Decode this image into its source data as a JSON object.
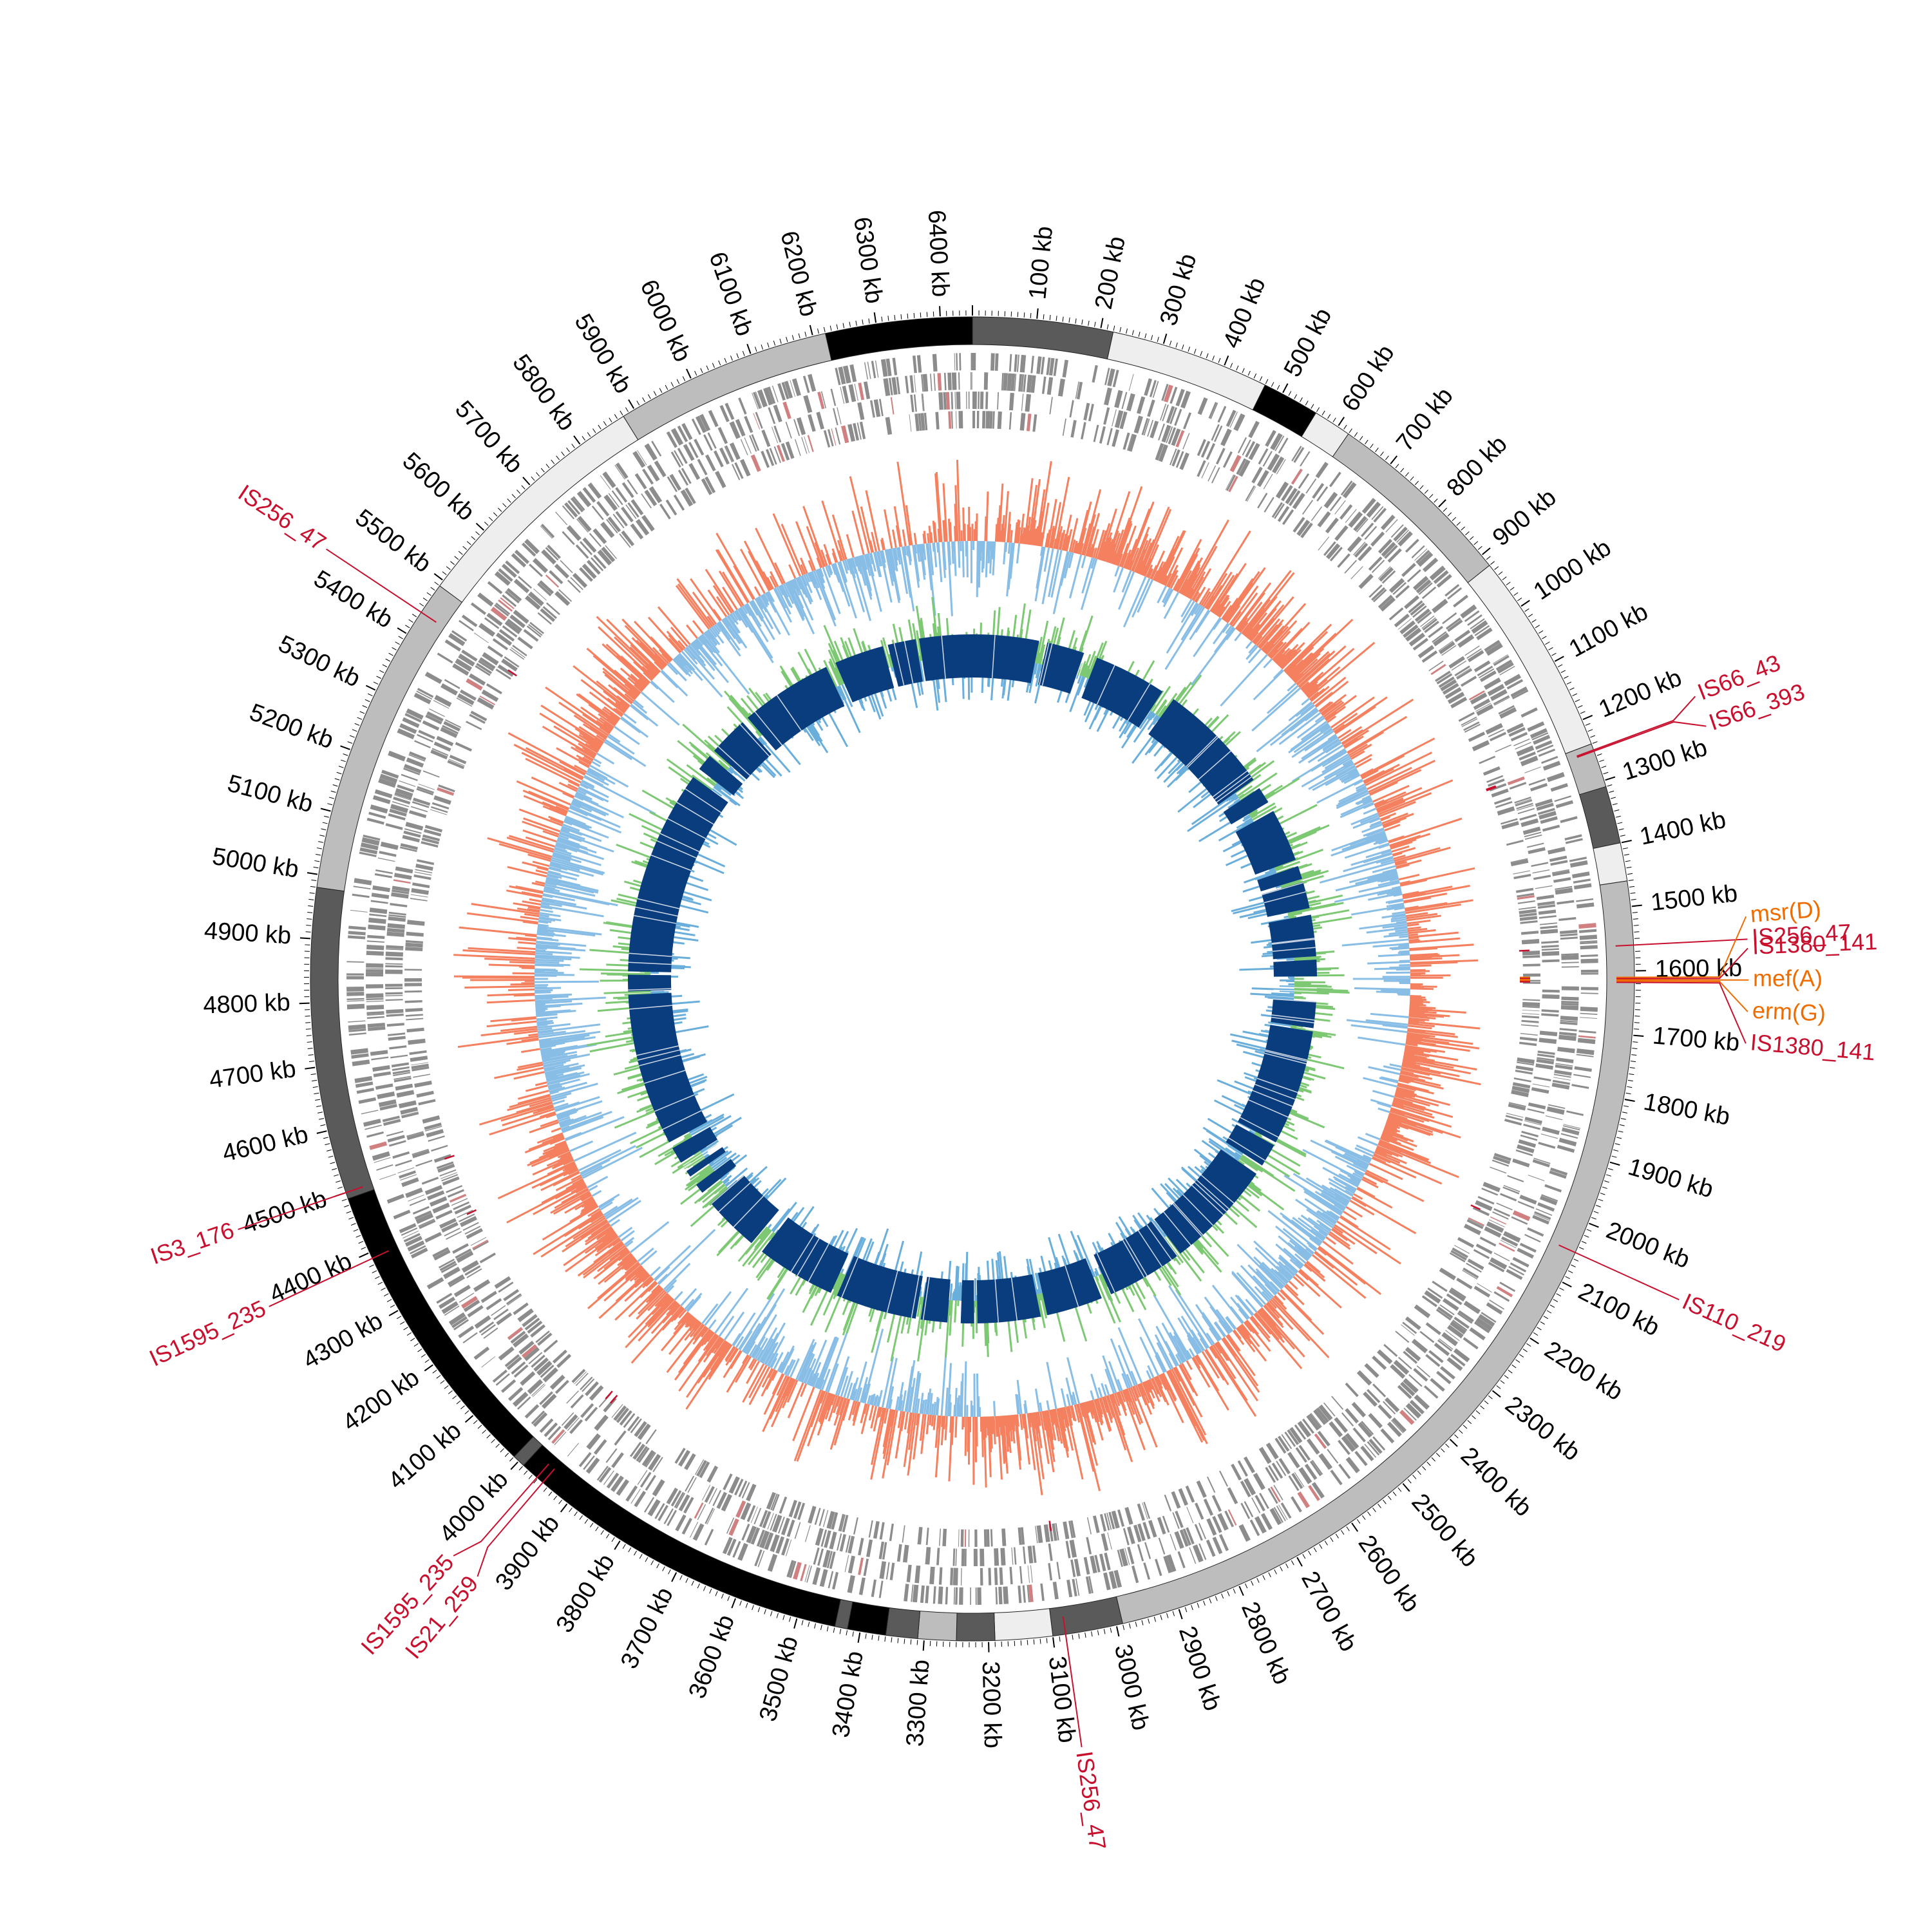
{
  "genome": {
    "total_kb": 6450,
    "tick_labels": [
      "100 kb",
      "200 kb",
      "300 kb",
      "400 kb",
      "500 kb",
      "600 kb",
      "700 kb",
      "800 kb",
      "900 kb",
      "1000 kb",
      "1100 kb",
      "1200 kb",
      "1300 kb",
      "1400 kb",
      "1500 kb",
      "1600 kb",
      "1700 kb",
      "1800 kb",
      "1900 kb",
      "2000 kb",
      "2100 kb",
      "2200 kb",
      "2300 kb",
      "2400 kb",
      "2500 kb",
      "2600 kb",
      "2700 kb",
      "2800 kb",
      "2900 kb",
      "3000 kb",
      "3100 kb",
      "3200 kb",
      "3300 kb",
      "3400 kb",
      "3500 kb",
      "3600 kb",
      "3700 kb",
      "3800 kb",
      "3900 kb",
      "4000 kb",
      "4100 kb",
      "4200 kb",
      "4300 kb",
      "4400 kb",
      "4500 kb",
      "4600 kb",
      "4700 kb",
      "4800 kb",
      "4900 kb",
      "5000 kb",
      "5100 kb",
      "5200 kb",
      "5300 kb",
      "5400 kb",
      "5500 kb",
      "5600 kb",
      "5700 kb",
      "5800 kb",
      "5900 kb",
      "6000 kb",
      "6100 kb",
      "6200 kb",
      "6300 kb",
      "6400 kb"
    ]
  },
  "contigs": [
    {
      "start": 0,
      "end": 220,
      "color": "#5a5a5a"
    },
    {
      "start": 220,
      "end": 470,
      "color": "#eeeeee"
    },
    {
      "start": 470,
      "end": 560,
      "color": "#000000"
    },
    {
      "start": 560,
      "end": 620,
      "color": "#eeeeee"
    },
    {
      "start": 620,
      "end": 920,
      "color": "#bdbdbd"
    },
    {
      "start": 920,
      "end": 1240,
      "color": "#eeeeee"
    },
    {
      "start": 1240,
      "end": 1310,
      "color": "#bdbdbd"
    },
    {
      "start": 1310,
      "end": 1400,
      "color": "#5a5a5a"
    },
    {
      "start": 1400,
      "end": 1460,
      "color": "#eeeeee"
    },
    {
      "start": 1460,
      "end": 2990,
      "color": "#bdbdbd"
    },
    {
      "start": 2990,
      "end": 3100,
      "color": "#5a5a5a"
    },
    {
      "start": 3100,
      "end": 3190,
      "color": "#eeeeee"
    },
    {
      "start": 3190,
      "end": 3250,
      "color": "#5a5a5a"
    },
    {
      "start": 3250,
      "end": 3310,
      "color": "#bdbdbd"
    },
    {
      "start": 3310,
      "end": 3360,
      "color": "#5a5a5a"
    },
    {
      "start": 3360,
      "end": 3420,
      "color": "#000000"
    },
    {
      "start": 3420,
      "end": 3440,
      "color": "#5a5a5a"
    },
    {
      "start": 3440,
      "end": 3990,
      "color": "#000000"
    },
    {
      "start": 3990,
      "end": 4010,
      "color": "#5a5a5a"
    },
    {
      "start": 4010,
      "end": 4490,
      "color": "#000000"
    },
    {
      "start": 4490,
      "end": 4980,
      "color": "#5a5a5a"
    },
    {
      "start": 4980,
      "end": 5490,
      "color": "#bdbdbd"
    },
    {
      "start": 5490,
      "end": 5880,
      "color": "#eeeeee"
    },
    {
      "start": 5880,
      "end": 6220,
      "color": "#bdbdbd"
    },
    {
      "start": 6220,
      "end": 6450,
      "color": "#000000"
    }
  ],
  "homology_gaps": [
    [
      200,
      225
    ],
    [
      340,
      380
    ],
    [
      600,
      640
    ],
    [
      980,
      1010
    ],
    [
      1060,
      1090
    ],
    [
      1250,
      1270
    ],
    [
      1310,
      1320
    ],
    [
      1400,
      1420
    ],
    [
      1545,
      1555
    ],
    [
      1605,
      1680
    ],
    [
      1760,
      1770
    ],
    [
      2120,
      2130
    ],
    [
      2200,
      2230
    ],
    [
      2560,
      2570
    ],
    [
      2800,
      2830
    ],
    [
      3000,
      3020
    ],
    [
      3210,
      3220
    ],
    [
      3260,
      3300
    ],
    [
      3380,
      3395
    ],
    [
      3640,
      3660
    ],
    [
      3900,
      3940
    ],
    [
      4110,
      4150
    ],
    [
      4180,
      4210
    ],
    [
      4230,
      4260
    ],
    [
      4310,
      4330
    ],
    [
      4790,
      4800
    ],
    [
      4850,
      4860
    ],
    [
      5480,
      5510
    ],
    [
      5560,
      5580
    ],
    [
      5700,
      5720
    ],
    [
      6000,
      6030
    ],
    [
      6180,
      6195
    ],
    [
      6280,
      6290
    ]
  ],
  "annotations": [
    {
      "label": "IS66_43",
      "pos": 1250,
      "color": "#c8102e"
    },
    {
      "label": "IS66_393",
      "pos": 1252,
      "color": "#c8102e"
    },
    {
      "label": "IS256_47",
      "pos": 1560,
      "color": "#c8102e"
    },
    {
      "label": "msr(D)",
      "pos": 1610,
      "color": "#ef6c00"
    },
    {
      "label": "IS1380_141",
      "pos": 1612,
      "color": "#c8102e"
    },
    {
      "label": "mef(A)",
      "pos": 1614,
      "color": "#ef6c00"
    },
    {
      "label": "erm(G)",
      "pos": 1616,
      "color": "#ef6c00"
    },
    {
      "label": "IS1380_141",
      "pos": 1618,
      "color": "#c8102e"
    },
    {
      "label": "IS110_219",
      "pos": 2050,
      "color": "#c8102e"
    },
    {
      "label": "IS256_47",
      "pos": 3080,
      "color": "#c8102e"
    },
    {
      "label": "IS21_259",
      "pos": 3950,
      "color": "#c8102e"
    },
    {
      "label": "IS1595_235",
      "pos": 3962,
      "color": "#c8102e"
    },
    {
      "label": "IS1595_235",
      "pos": 4390,
      "color": "#c8102e"
    },
    {
      "label": "IS3_176",
      "pos": 4500,
      "color": "#c8102e"
    },
    {
      "label": "IS256_47",
      "pos": 5440,
      "color": "#c8102e"
    }
  ],
  "colors": {
    "gc_skew_pos": "#f4805f",
    "gc_skew_neg": "#88bde6",
    "gc_content_pos": "#7dc873",
    "gc_content_neg": "#6aaedb",
    "homology": "#0a3d7e",
    "cds": "#8c8c8c",
    "cds_rna": "#d08080",
    "annotation_red": "#c8102e",
    "annotation_orange": "#ef6c00"
  }
}
